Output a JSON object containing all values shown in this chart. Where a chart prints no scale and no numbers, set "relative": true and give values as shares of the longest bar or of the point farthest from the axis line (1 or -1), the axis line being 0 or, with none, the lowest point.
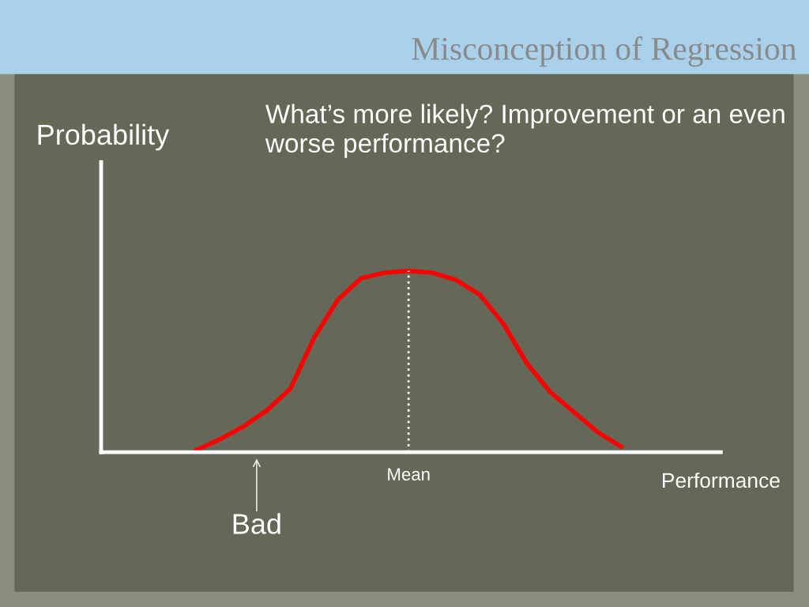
{
  "chart_data": {
    "type": "line",
    "title": "Misconception of Regression",
    "xlabel": "Performance",
    "ylabel": "Probability",
    "relative": true,
    "categories": [
      null,
      null,
      null,
      null,
      null,
      null,
      null,
      null,
      null,
      null,
      null,
      null,
      null,
      null,
      null,
      null,
      null,
      null,
      null
    ],
    "series": [
      {
        "color": "#ff0000",
        "values": [
          0.01,
          0.07,
          0.14,
          0.23,
          0.35,
          0.63,
          0.84,
          0.96,
          0.99,
          1,
          0.99,
          0.95,
          0.87,
          0.71,
          0.49,
          0.33,
          0.22,
          0.11,
          0.03
        ]
      }
    ],
    "annotations": [
      "What’s more likely? Improvement or an even worse performance?",
      "Bad",
      "Mean"
    ],
    "marker": "none",
    "line_style": "solid",
    "grid": false,
    "legend": false
  }
}
